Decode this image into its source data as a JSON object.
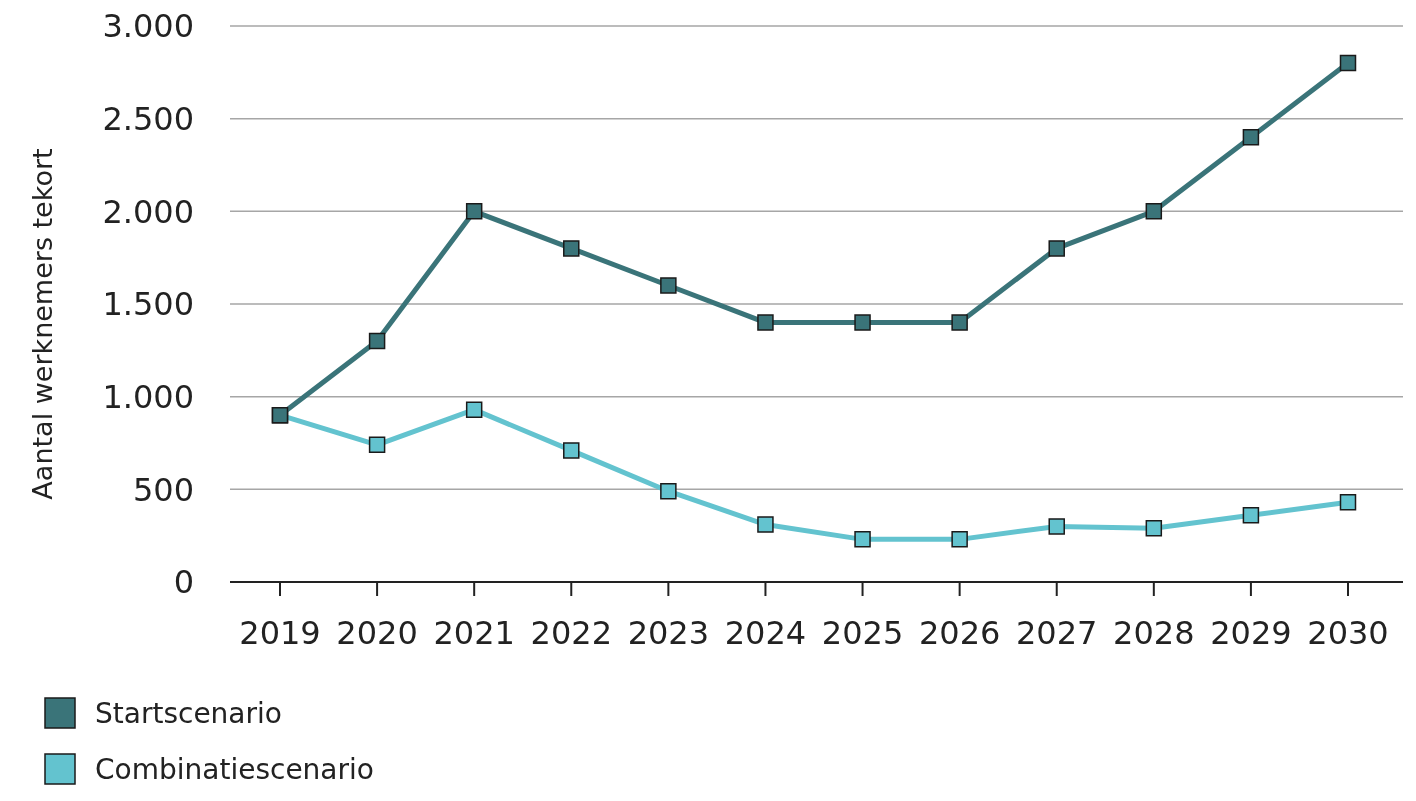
{
  "chart_data": {
    "type": "line",
    "ylabel": "Aantal werknemers tekort",
    "categories": [
      "2019",
      "2020",
      "2021",
      "2022",
      "2023",
      "2024",
      "2025",
      "2026",
      "2027",
      "2028",
      "2029",
      "2030"
    ],
    "series": [
      {
        "name": "Startscenario",
        "color": "#3a7479",
        "values": [
          900,
          1300,
          2000,
          1800,
          1600,
          1400,
          1400,
          1400,
          1800,
          2000,
          2400,
          2800
        ]
      },
      {
        "name": "Combinatiescenario",
        "color": "#63c3cf",
        "values": [
          900,
          740,
          930,
          710,
          490,
          310,
          230,
          230,
          300,
          290,
          360,
          430
        ]
      }
    ],
    "ylim": [
      0,
      3000
    ],
    "yticks": [
      {
        "value": 0,
        "label": "0"
      },
      {
        "value": 500,
        "label": "500"
      },
      {
        "value": 1000,
        "label": "1.000"
      },
      {
        "value": 1500,
        "label": "1.500"
      },
      {
        "value": 2000,
        "label": "2.000"
      },
      {
        "value": 2500,
        "label": "2.500"
      },
      {
        "value": 3000,
        "label": "3.000"
      }
    ],
    "grid": "y",
    "legend": "bottom left",
    "marker": "square",
    "line_style": "solid"
  }
}
